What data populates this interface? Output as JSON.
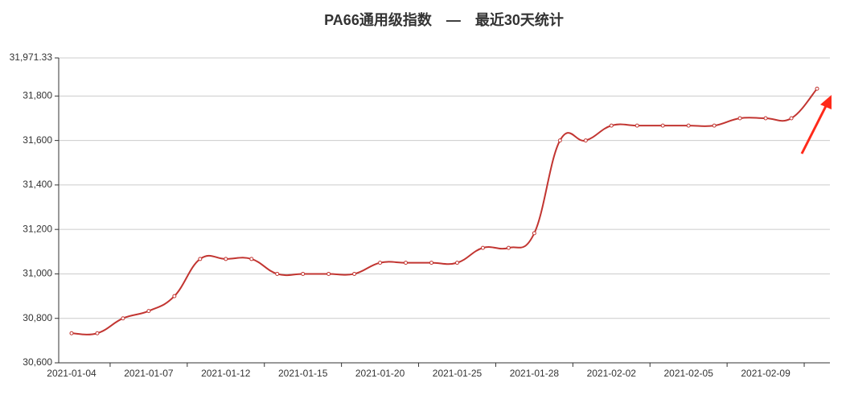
{
  "chart_data": {
    "type": "line",
    "title": "PA66通用级指数　—　最近30天统计",
    "categories": [
      "2021-01-04",
      null,
      null,
      "2021-01-07",
      null,
      null,
      "2021-01-12",
      null,
      null,
      "2021-01-15",
      null,
      null,
      "2021-01-20",
      null,
      null,
      "2021-01-25",
      null,
      null,
      "2021-01-28",
      null,
      null,
      "2021-02-02",
      null,
      null,
      "2021-02-05",
      null,
      null,
      "2021-02-09",
      null,
      null
    ],
    "series": [
      {
        "name": "PA66通用级指数",
        "color": "#c23531",
        "values": [
          30733,
          30733,
          30800,
          30833,
          30900,
          31067,
          31067,
          31067,
          31000,
          31000,
          31000,
          31000,
          31050,
          31050,
          31050,
          31050,
          31117,
          31117,
          31183,
          31600,
          31600,
          31667,
          31667,
          31667,
          31667,
          31667,
          31700,
          31700,
          31700,
          31833
        ]
      }
    ],
    "ylim": [
      30600,
      31971.33
    ],
    "yticks": [
      {
        "value": 30600,
        "label": "30,600"
      },
      {
        "value": 30800,
        "label": "30,800"
      },
      {
        "value": 31000,
        "label": "31,000"
      },
      {
        "value": 31200,
        "label": "31,200"
      },
      {
        "value": 31400,
        "label": "31,400"
      },
      {
        "value": 31600,
        "label": "31,600"
      },
      {
        "value": 31800,
        "label": "31,800"
      },
      {
        "value": 31971.33,
        "label": "31,971.33"
      }
    ],
    "grid": true
  }
}
